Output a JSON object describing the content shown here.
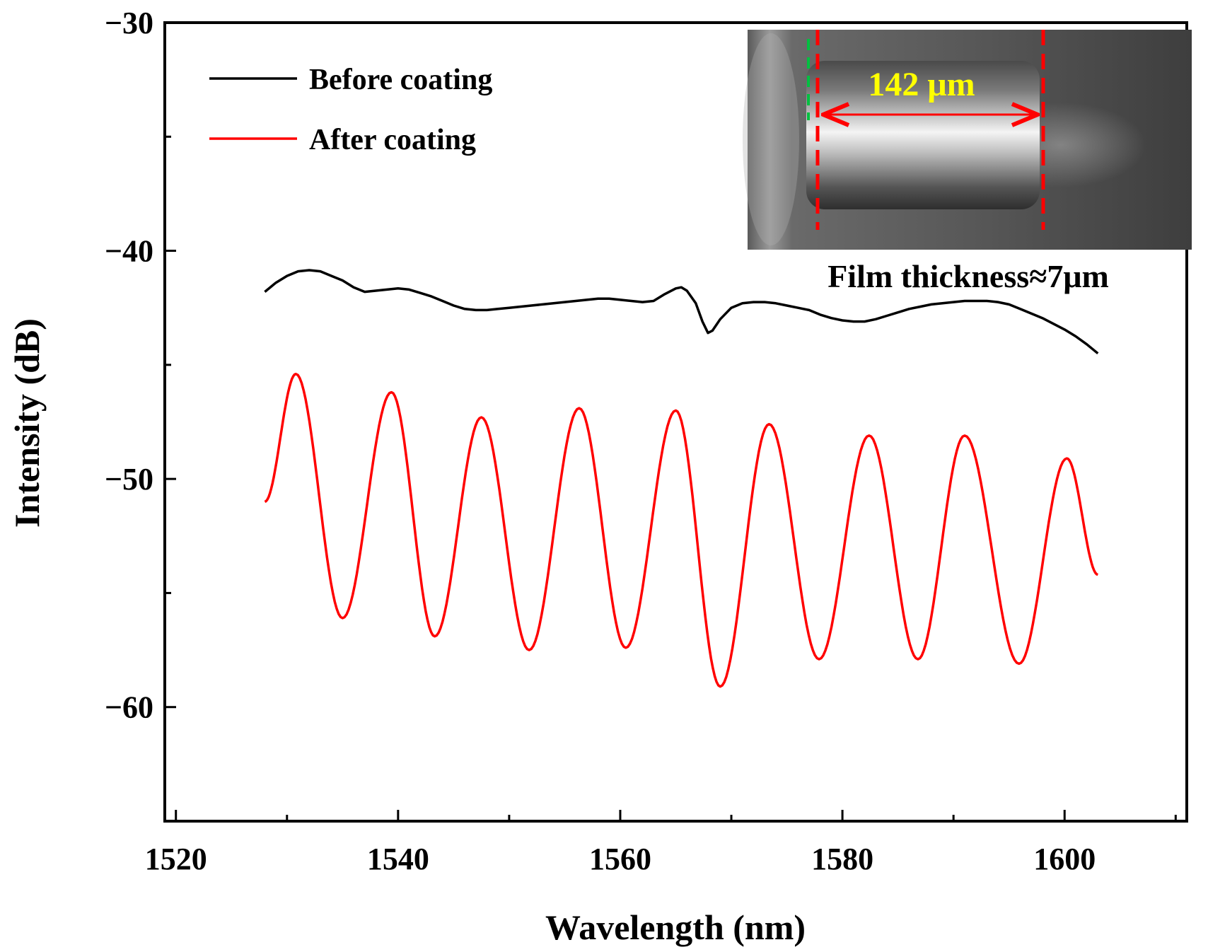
{
  "chart_data": {
    "type": "line",
    "title": "",
    "xlabel": "Wavelength (nm)",
    "ylabel": "Intensity (dB)",
    "xlim": [
      1519,
      1611
    ],
    "ylim": [
      -65,
      -30
    ],
    "x_ticks": [
      1520,
      1540,
      1560,
      1580,
      1600
    ],
    "y_ticks": [
      -30,
      -40,
      -50,
      -60
    ],
    "x_tick_labels": [
      "1520",
      "1540",
      "1560",
      "1580",
      "1600"
    ],
    "y_tick_labels": [
      "−30",
      "−40",
      "−50",
      "−60"
    ],
    "grid": false,
    "legend_position": "top-left",
    "series": [
      {
        "name": "Before coating",
        "color": "#000000",
        "points": [
          [
            1528,
            -41.8
          ],
          [
            1529,
            -41.4
          ],
          [
            1530,
            -41.1
          ],
          [
            1531,
            -40.9
          ],
          [
            1532,
            -40.85
          ],
          [
            1533,
            -40.9
          ],
          [
            1534,
            -41.1
          ],
          [
            1535,
            -41.3
          ],
          [
            1536,
            -41.6
          ],
          [
            1537,
            -41.8
          ],
          [
            1538,
            -41.75
          ],
          [
            1539,
            -41.7
          ],
          [
            1540,
            -41.65
          ],
          [
            1541,
            -41.7
          ],
          [
            1542,
            -41.85
          ],
          [
            1543,
            -42.0
          ],
          [
            1544,
            -42.2
          ],
          [
            1545,
            -42.4
          ],
          [
            1546,
            -42.55
          ],
          [
            1547,
            -42.6
          ],
          [
            1548,
            -42.6
          ],
          [
            1549,
            -42.55
          ],
          [
            1550,
            -42.5
          ],
          [
            1551,
            -42.45
          ],
          [
            1552,
            -42.4
          ],
          [
            1553,
            -42.35
          ],
          [
            1554,
            -42.3
          ],
          [
            1555,
            -42.25
          ],
          [
            1556,
            -42.2
          ],
          [
            1557,
            -42.15
          ],
          [
            1558,
            -42.1
          ],
          [
            1559,
            -42.1
          ],
          [
            1560,
            -42.15
          ],
          [
            1561,
            -42.2
          ],
          [
            1562,
            -42.25
          ],
          [
            1563,
            -42.2
          ],
          [
            1564,
            -41.9
          ],
          [
            1565,
            -41.65
          ],
          [
            1565.5,
            -41.6
          ],
          [
            1566,
            -41.75
          ],
          [
            1566.8,
            -42.3
          ],
          [
            1567.4,
            -43.1
          ],
          [
            1567.9,
            -43.6
          ],
          [
            1568.3,
            -43.5
          ],
          [
            1569,
            -43.0
          ],
          [
            1570,
            -42.5
          ],
          [
            1571,
            -42.3
          ],
          [
            1572,
            -42.25
          ],
          [
            1573,
            -42.25
          ],
          [
            1574,
            -42.3
          ],
          [
            1575,
            -42.4
          ],
          [
            1576,
            -42.5
          ],
          [
            1577,
            -42.6
          ],
          [
            1578,
            -42.8
          ],
          [
            1579,
            -42.95
          ],
          [
            1580,
            -43.05
          ],
          [
            1581,
            -43.1
          ],
          [
            1582,
            -43.1
          ],
          [
            1583,
            -43.0
          ],
          [
            1584,
            -42.85
          ],
          [
            1585,
            -42.7
          ],
          [
            1586,
            -42.55
          ],
          [
            1587,
            -42.45
          ],
          [
            1588,
            -42.35
          ],
          [
            1589,
            -42.3
          ],
          [
            1590,
            -42.25
          ],
          [
            1591,
            -42.2
          ],
          [
            1592,
            -42.2
          ],
          [
            1593,
            -42.2
          ],
          [
            1594,
            -42.25
          ],
          [
            1595,
            -42.35
          ],
          [
            1596,
            -42.55
          ],
          [
            1597,
            -42.75
          ],
          [
            1598,
            -42.95
          ],
          [
            1599,
            -43.2
          ],
          [
            1600,
            -43.45
          ],
          [
            1601,
            -43.75
          ],
          [
            1602,
            -44.1
          ],
          [
            1603,
            -44.5
          ]
        ]
      },
      {
        "name": "After coating",
        "color": "#ff0000",
        "extrema": [
          [
            1528,
            -51.0
          ],
          [
            1530.8,
            -45.4
          ],
          [
            1535.0,
            -56.1
          ],
          [
            1539.4,
            -46.2
          ],
          [
            1543.3,
            -56.9
          ],
          [
            1547.5,
            -47.3
          ],
          [
            1551.8,
            -57.5
          ],
          [
            1556.3,
            -46.9
          ],
          [
            1560.5,
            -57.4
          ],
          [
            1565.0,
            -47.0
          ],
          [
            1569.0,
            -59.1
          ],
          [
            1573.4,
            -47.6
          ],
          [
            1577.9,
            -57.9
          ],
          [
            1582.4,
            -48.1
          ],
          [
            1586.8,
            -57.9
          ],
          [
            1591.0,
            -48.1
          ],
          [
            1595.9,
            -58.1
          ],
          [
            1600.2,
            -49.1
          ],
          [
            1603,
            -54.2
          ]
        ]
      }
    ]
  },
  "legend": [
    {
      "label": "Before coating",
      "color": "#000000"
    },
    {
      "label": "After coating",
      "color": "#ff0000"
    }
  ],
  "inset": {
    "measurement": "142 μm",
    "caption": "Film thickness≈7μm",
    "measure_color": "#ffff00",
    "marker_color": "#ff0000",
    "edge_marker_color": "#00c040"
  }
}
